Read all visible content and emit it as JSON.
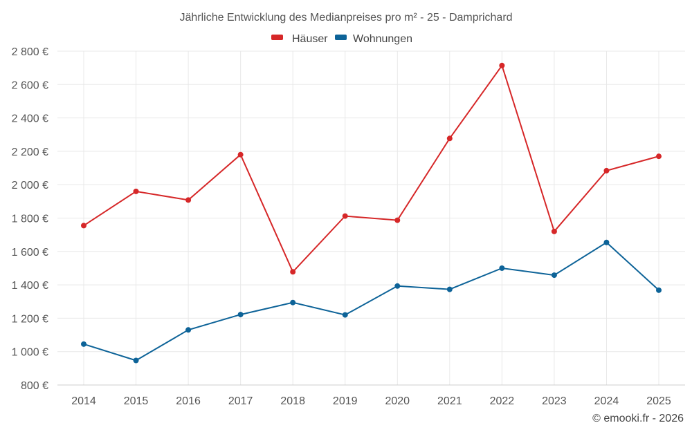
{
  "chart_data": {
    "type": "line",
    "title": "Jährliche Entwicklung des Medianpreises pro m² - 25 - Damprichard",
    "categories": [
      "2014",
      "2015",
      "2016",
      "2017",
      "2018",
      "2019",
      "2020",
      "2021",
      "2022",
      "2023",
      "2024",
      "2025"
    ],
    "series": [
      {
        "name": "Häuser",
        "color": "#d62728",
        "values": [
          1755,
          1960,
          1908,
          2180,
          1478,
          1812,
          1787,
          2277,
          2714,
          1720,
          2084,
          2170
        ]
      },
      {
        "name": "Wohnungen",
        "color": "#0d6398",
        "values": [
          1045,
          947,
          1130,
          1222,
          1294,
          1220,
          1393,
          1373,
          1500,
          1458,
          1654,
          1368
        ]
      }
    ],
    "y_ticks": [
      "800 €",
      "1 000 €",
      "1 200 €",
      "1 400 €",
      "1 600 €",
      "1 800 €",
      "2 000 €",
      "2 200 €",
      "2 400 €",
      "2 600 €",
      "2 800 €"
    ],
    "ylim": [
      800,
      2800
    ],
    "ylabel": "",
    "xlabel": "",
    "grid": true,
    "legend_position": "top-center"
  },
  "credit": "© emooki.fr - 2026"
}
